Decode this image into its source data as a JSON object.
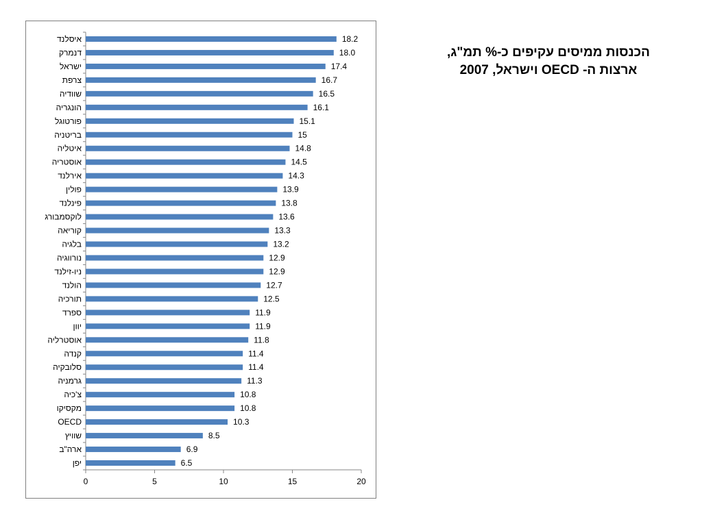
{
  "slide": {
    "title_line1": "הכנסות ממיסים עקיפים כ-% תמ\"ג,",
    "title_line2": "ארצות ה- OECD וישראל, 2007"
  },
  "chart_data": {
    "type": "bar",
    "orientation": "horizontal",
    "categories": [
      "איסלנד",
      "דנמרק",
      "ישראל",
      "צרפת",
      "שוודיה",
      "הונגריה",
      "פורטוגל",
      "בריטניה",
      "איטליה",
      "אוסטריה",
      "אירלנד",
      "פולין",
      "פינלנד",
      "לוקסמבורג",
      "קוריאה",
      "בלגיה",
      "נורווגיה",
      "ניו-זילנד",
      "הולנד",
      "תורכיה",
      "ספרד",
      "יוון",
      "אוסטרליה",
      "קנדה",
      "סלובקיה",
      "גרמניה",
      "צ'כיה",
      "מקסיקו",
      "OECD",
      "שוויץ",
      "ארה\"ב",
      "יפן"
    ],
    "values": [
      18.2,
      18.0,
      17.4,
      16.7,
      16.5,
      16.1,
      15.1,
      15,
      14.8,
      14.5,
      14.3,
      13.9,
      13.8,
      13.6,
      13.3,
      13.2,
      12.9,
      12.9,
      12.7,
      12.5,
      11.9,
      11.9,
      11.8,
      11.4,
      11.4,
      11.3,
      10.8,
      10.8,
      10.3,
      8.5,
      6.9,
      6.5
    ],
    "value_labels": [
      "18.2",
      "18.0",
      "17.4",
      "16.7",
      "16.5",
      "16.1",
      "15.1",
      "15",
      "14.8",
      "14.5",
      "14.3",
      "13.9",
      "13.8",
      "13.6",
      "13.3",
      "13.2",
      "12.9",
      "12.9",
      "12.7",
      "12.5",
      "11.9",
      "11.9",
      "11.8",
      "11.4",
      "11.4",
      "11.3",
      "10.8",
      "10.8",
      "10.3",
      "8.5",
      "6.9",
      "6.5"
    ],
    "x_ticks": [
      0,
      5,
      10,
      15,
      20
    ],
    "xlim": [
      0,
      20
    ],
    "grid": false,
    "legend": "none",
    "bar_color": "#4f81bd"
  }
}
